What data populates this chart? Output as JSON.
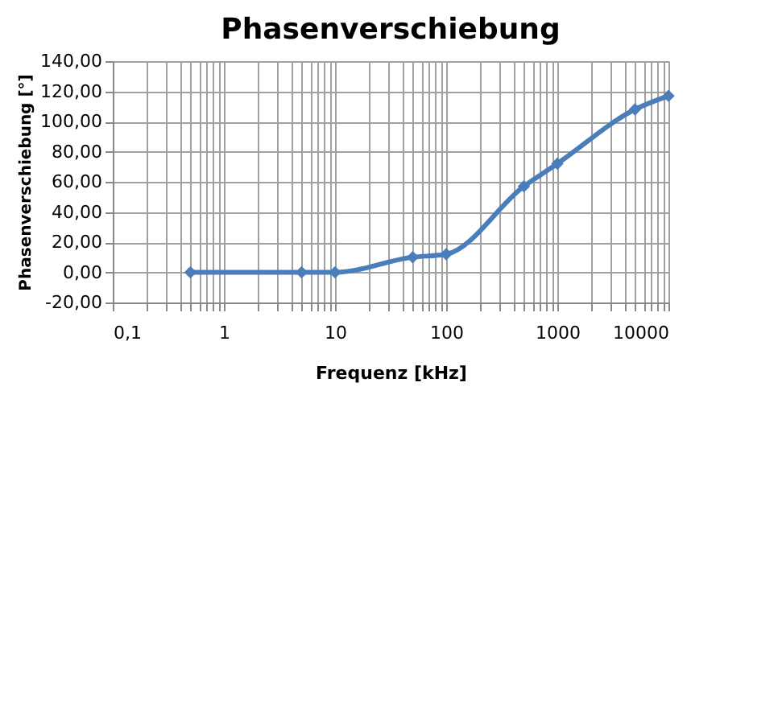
{
  "chart_data": {
    "type": "line",
    "title": "Phasenverschiebung",
    "xlabel": "Frequenz [kHz]",
    "ylabel": "Phasenverschiebung [°]",
    "x": [
      0.5,
      5,
      10,
      50,
      100,
      500,
      1000,
      5000,
      10000
    ],
    "series": [
      {
        "color": "#4a7ebb",
        "values": [
          0,
          0,
          0,
          10,
          12,
          57,
          72,
          108,
          117
        ]
      }
    ],
    "log": "x",
    "xlim": [
      0.1,
      10000
    ],
    "xticks": [
      {
        "value": 0.1,
        "label": "0,1"
      },
      {
        "value": 0.2,
        "label": null
      },
      {
        "value": 0.3,
        "label": null
      },
      {
        "value": 0.4,
        "label": null
      },
      {
        "value": 0.5,
        "label": null
      },
      {
        "value": 0.6,
        "label": null
      },
      {
        "value": 0.7,
        "label": null
      },
      {
        "value": 0.8,
        "label": null
      },
      {
        "value": 0.9,
        "label": null
      },
      {
        "value": 1,
        "label": "1"
      },
      {
        "value": 2,
        "label": null
      },
      {
        "value": 3,
        "label": null
      },
      {
        "value": 4,
        "label": null
      },
      {
        "value": 5,
        "label": null
      },
      {
        "value": 6,
        "label": null
      },
      {
        "value": 7,
        "label": null
      },
      {
        "value": 8,
        "label": null
      },
      {
        "value": 9,
        "label": null
      },
      {
        "value": 10,
        "label": "10"
      },
      {
        "value": 20,
        "label": null
      },
      {
        "value": 30,
        "label": null
      },
      {
        "value": 40,
        "label": null
      },
      {
        "value": 50,
        "label": null
      },
      {
        "value": 60,
        "label": null
      },
      {
        "value": 70,
        "label": null
      },
      {
        "value": 80,
        "label": null
      },
      {
        "value": 90,
        "label": null
      },
      {
        "value": 100,
        "label": "100"
      },
      {
        "value": 200,
        "label": null
      },
      {
        "value": 300,
        "label": null
      },
      {
        "value": 400,
        "label": null
      },
      {
        "value": 500,
        "label": null
      },
      {
        "value": 600,
        "label": null
      },
      {
        "value": 700,
        "label": null
      },
      {
        "value": 800,
        "label": null
      },
      {
        "value": 900,
        "label": null
      },
      {
        "value": 1000,
        "label": "1000"
      },
      {
        "value": 2000,
        "label": null
      },
      {
        "value": 3000,
        "label": null
      },
      {
        "value": 4000,
        "label": null
      },
      {
        "value": 5000,
        "label": null
      },
      {
        "value": 6000,
        "label": null
      },
      {
        "value": 7000,
        "label": null
      },
      {
        "value": 8000,
        "label": null
      },
      {
        "value": 9000,
        "label": null
      },
      {
        "value": 10000,
        "label": "10000"
      }
    ],
    "ylim": [
      -20,
      140
    ],
    "yticks": [
      {
        "value": -20,
        "label": "-20,00"
      },
      {
        "value": 0,
        "label": "0,00"
      },
      {
        "value": 20,
        "label": "20,00"
      },
      {
        "value": 40,
        "label": "40,00"
      },
      {
        "value": 60,
        "label": "60,00"
      },
      {
        "value": 80,
        "label": "80,00"
      },
      {
        "value": 100,
        "label": "100,00"
      },
      {
        "value": 120,
        "label": "120,00"
      },
      {
        "value": 140,
        "label": "140,00"
      }
    ],
    "grid": true,
    "marker": "diamond",
    "line_style": "solid"
  }
}
